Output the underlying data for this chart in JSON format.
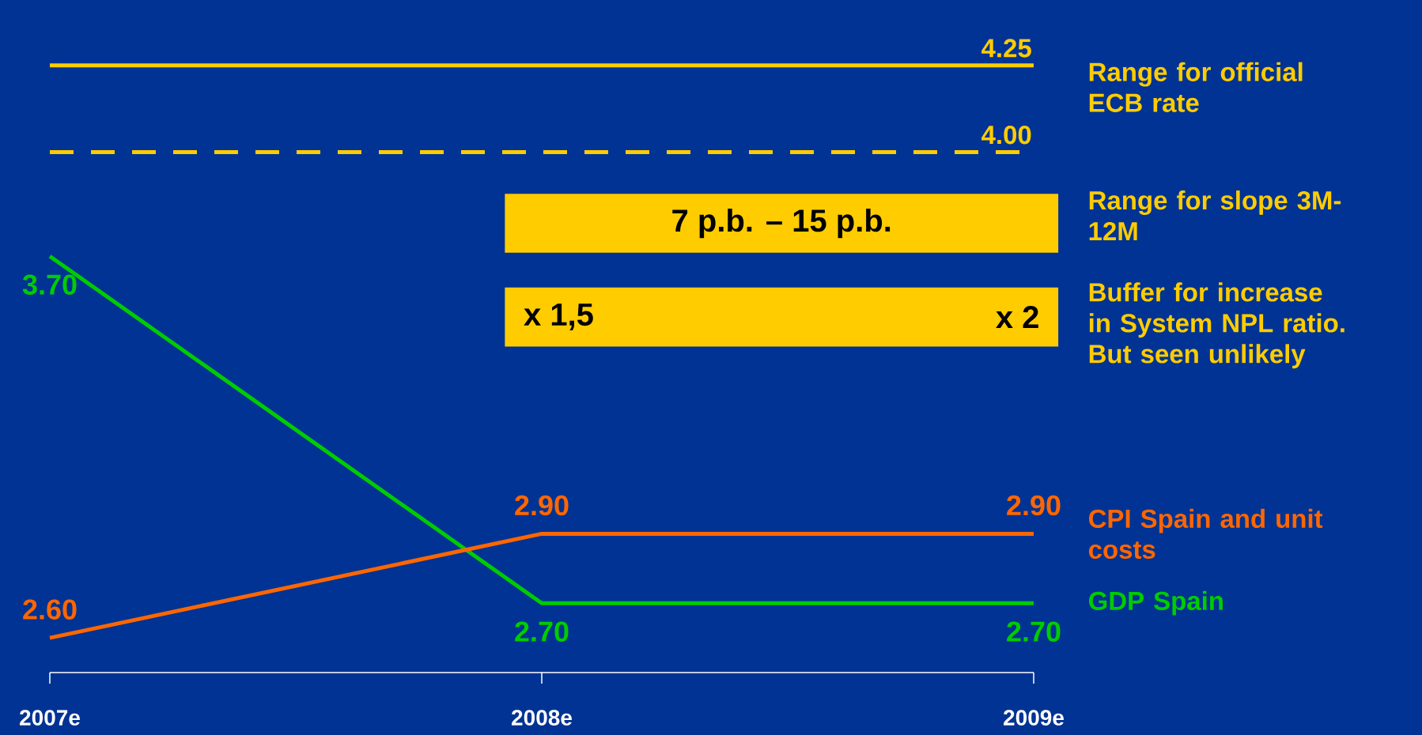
{
  "chart_data": {
    "type": "line",
    "categories": [
      "2007e",
      "2008e",
      "2009e"
    ],
    "series": [
      {
        "name": "GDP Spain",
        "color": "#00cc00",
        "values": [
          3.7,
          2.7,
          2.7
        ],
        "value_labels": [
          "3.70",
          "2.70",
          "2.70"
        ]
      },
      {
        "name": "CPI Spain and unit costs",
        "color": "#ff6600",
        "values": [
          2.6,
          2.9,
          2.9
        ],
        "value_labels": [
          "2.60",
          "2.90",
          "2.90"
        ]
      }
    ],
    "ref_lines": [
      {
        "axis": "y",
        "value": 4.25,
        "label": "4.25",
        "color": "#ffcc00",
        "line_style": "solid"
      },
      {
        "axis": "y",
        "value": 4.0,
        "label": "4.00",
        "color": "#ffcc00",
        "line_style": "dashed"
      }
    ],
    "annotations": [
      "Range for official ECB rate",
      "7 p.b. – 15 p.b.",
      "Range for slope 3M-12M",
      "x 1,5",
      "x 2",
      "Buffer for increase in System NPL ratio. But seen unlikely"
    ],
    "grid": false,
    "legend": false,
    "marker": "none",
    "line_style": "solid"
  }
}
